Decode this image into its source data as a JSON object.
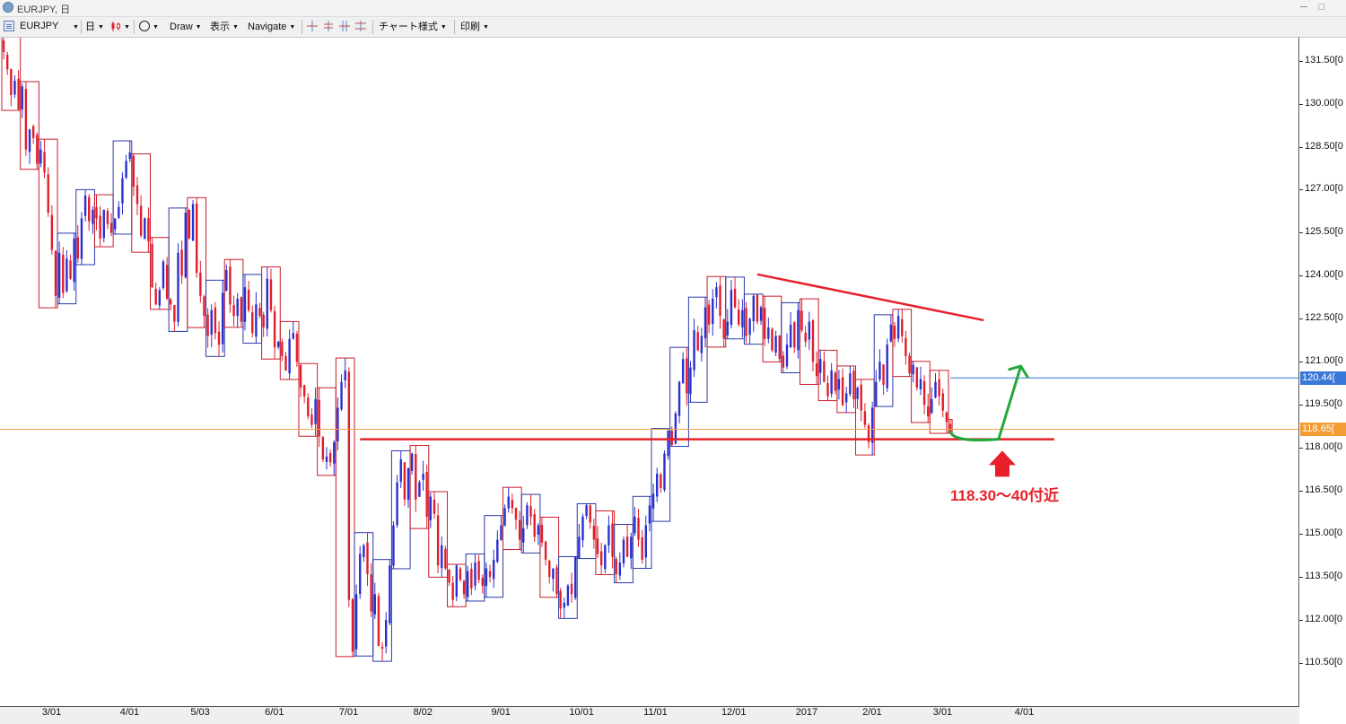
{
  "window": {
    "title": "EURJPY, 日",
    "min_label": "─",
    "max_label": "□"
  },
  "toolbar": {
    "symbol": "EURJPY",
    "timeframe": "日",
    "draw": "Draw",
    "view": "表示",
    "navigate": "Navigate",
    "chart_style": "チャート様式",
    "print": "印刷"
  },
  "chart_data": {
    "type": "candlestick",
    "symbol": "EURJPY",
    "timeframe": "日",
    "ylim": [
      109.0,
      132.3
    ],
    "y_ticks": [
      "110.50[0",
      "112.00[0",
      "113.50[0",
      "115.00[0",
      "116.50[0",
      "118.00[0",
      "119.50[0",
      "121.00[0",
      "122.50[0",
      "124.00[0",
      "125.50[0",
      "127.00[0",
      "128.50[0",
      "130.00[0",
      "131.50[0"
    ],
    "y_tick_values": [
      110.5,
      112.0,
      113.5,
      115.0,
      116.5,
      118.0,
      119.5,
      121.0,
      122.5,
      124.0,
      125.5,
      127.0,
      128.5,
      130.0,
      131.5
    ],
    "x_ticks": [
      "3/01",
      "4/01",
      "5/03",
      "6/01",
      "7/01",
      "8/02",
      "9/01",
      "10/01",
      "11/01",
      "12/01",
      "2017",
      "2/01",
      "3/01",
      "4/01"
    ],
    "x_tick_index": [
      13,
      34,
      53,
      73,
      93,
      113,
      134,
      155,
      175,
      196,
      216,
      234,
      253,
      275
    ],
    "x_total_bars": 350,
    "close_path": [
      131.8,
      131.2,
      130.3,
      130.8,
      129.8,
      130.6,
      128.4,
      129.1,
      128.8,
      127.9,
      128.4,
      127.6,
      126.2,
      124.9,
      123.3,
      124.8,
      123.4,
      124.6,
      123.9,
      125.3,
      124.6,
      126.0,
      126.8,
      125.9,
      126.3,
      126.0,
      125.3,
      126.3,
      125.8,
      125.5,
      126.0,
      126.4,
      127.4,
      128.0,
      128.3,
      127.1,
      126.5,
      125.4,
      126.0,
      125.2,
      123.6,
      123.0,
      123.5,
      124.5,
      123.2,
      123.0,
      122.4,
      124.8,
      124.0,
      126.2,
      125.3,
      126.5,
      124.1,
      123.3,
      122.6,
      121.9,
      122.8,
      122.0,
      121.6,
      123.4,
      124.2,
      123.0,
      122.6,
      123.2,
      122.4,
      123.6,
      122.8,
      122.0,
      123.0,
      122.6,
      122.2,
      123.9,
      122.8,
      121.5,
      121.7,
      121.2,
      120.7,
      121.8,
      122.0,
      121.0,
      120.1,
      119.8,
      119.1,
      118.8,
      119.7,
      118.4,
      117.6,
      117.7,
      117.5,
      118.2,
      119.4,
      120.3,
      120.7,
      112.7,
      110.9,
      112.9,
      114.3,
      114.6,
      113.6,
      112.3,
      112.9,
      111.1,
      111.0,
      112.0,
      113.9,
      115.3,
      116.8,
      117.6,
      116.2,
      117.3,
      117.8,
      116.2,
      116.8,
      117.1,
      115.6,
      116.3,
      115.7,
      113.9,
      114.6,
      113.8,
      113.3,
      112.7,
      113.9,
      113.4,
      112.9,
      113.7,
      113.1,
      114.0,
      113.4,
      113.2,
      113.8,
      113.5,
      114.1,
      114.8,
      115.3,
      115.9,
      116.3,
      115.9,
      115.5,
      114.8,
      115.2,
      116.0,
      115.6,
      114.9,
      115.3,
      114.7,
      114.1,
      113.5,
      113.8,
      112.9,
      112.4,
      112.6,
      113.2,
      112.9,
      114.2,
      114.9,
      115.6,
      116.0,
      115.4,
      114.8,
      114.3,
      113.9,
      114.6,
      115.3,
      114.2,
      113.6,
      114.0,
      114.8,
      114.2,
      114.9,
      115.6,
      114.8,
      114.1,
      115.3,
      116.0,
      116.4,
      117.1,
      116.6,
      117.8,
      118.6,
      118.1,
      119.2,
      120.3,
      121.1,
      119.9,
      120.8,
      122.1,
      121.4,
      121.9,
      122.9,
      122.3,
      123.2,
      123.6,
      122.6,
      121.8,
      122.4,
      123.5,
      122.9,
      122.3,
      122.8,
      121.9,
      122.5,
      123.3,
      122.4,
      122.9,
      121.8,
      122.2,
      121.4,
      121.9,
      121.1,
      120.8,
      121.6,
      122.3,
      121.5,
      122.8,
      122.1,
      121.7,
      122.4,
      121.0,
      120.5,
      121.1,
      120.3,
      119.8,
      120.7,
      120.0,
      120.4,
      119.5,
      119.9,
      120.6,
      119.7,
      120.1,
      119.3,
      118.8,
      118.2,
      119.4,
      120.3,
      121.0,
      120.2,
      121.6,
      122.3,
      121.8,
      122.6,
      121.9,
      121.2,
      120.6,
      120.9,
      120.1,
      120.4,
      119.5,
      119.1,
      119.7,
      120.3,
      119.8,
      119.3,
      118.9,
      118.6
    ]
  },
  "price_tags": {
    "blue": "120.44[",
    "orange": "118.65[",
    "blue_value": 120.44,
    "orange_value": 118.65
  },
  "annotation": {
    "text": "118.30〜40付近",
    "support_price": 118.3,
    "trendline_start_price": 124.05,
    "trendline_end_price": 122.45
  },
  "colors": {
    "bull": "#2a2fd0",
    "bear": "#e01e2a",
    "box_blue": "#2a3aa8",
    "box_red": "#c81e2a",
    "support": "#e8202a",
    "arrow_up": "#22a83a",
    "tag_blue": "#3a78d8",
    "tag_orange": "#f39c34",
    "orange_line": "#f3a040"
  }
}
